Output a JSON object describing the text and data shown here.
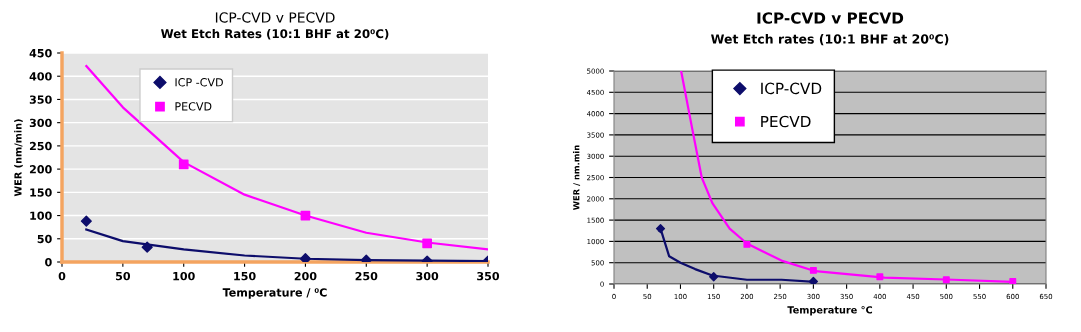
{
  "chart_data": [
    {
      "type": "scatter",
      "title": "ICP-CVD v PECVD",
      "subtitle": "Wet Etch Rates (10:1 BHF at 20⁰C)",
      "xlabel": "Temperature / ⁰C",
      "ylabel": "WER (nm/min)",
      "xlim": [
        0,
        350
      ],
      "xticks": [
        0,
        50,
        100,
        150,
        200,
        250,
        300,
        350
      ],
      "ylim": [
        0,
        450
      ],
      "yticks": [
        0,
        50,
        100,
        150,
        200,
        250,
        300,
        350,
        400,
        450
      ],
      "grid": "y",
      "legend": "top left",
      "series": [
        {
          "name": "ICP -CVD",
          "marker": "diamond",
          "color": "#0d0d6b",
          "x": [
            20,
            70,
            200,
            250,
            300,
            350
          ],
          "values": [
            88,
            32,
            7,
            4,
            2,
            2
          ]
        },
        {
          "name": "PECVD",
          "marker": "square",
          "color": "#ff00ff",
          "x": [
            100,
            200,
            300
          ],
          "values": [
            210,
            100,
            40
          ]
        },
        {
          "type": "line",
          "color": "#0d0d6b",
          "x": [
            20,
            50,
            100,
            150,
            200,
            250,
            300,
            350
          ],
          "values": [
            70,
            45,
            27,
            14,
            7,
            4,
            3,
            2
          ]
        },
        {
          "type": "line",
          "color": "#ff00ff",
          "x": [
            20,
            50,
            100,
            150,
            200,
            250,
            300,
            350
          ],
          "values": [
            422,
            333,
            215,
            145,
            100,
            63,
            42,
            27
          ]
        }
      ]
    },
    {
      "type": "scatter",
      "title": "ICP-CVD v PECVD",
      "subtitle": "Wet Etch rates (10:1 BHF at 20⁰C)",
      "xlabel": "Temperature °C",
      "ylabel": "WER / nm.min",
      "xlim": [
        0,
        650
      ],
      "xticks": [
        0,
        50,
        100,
        150,
        200,
        250,
        300,
        350,
        400,
        450,
        500,
        550,
        600,
        650
      ],
      "ylim": [
        0,
        5000
      ],
      "yticks": [
        0,
        500,
        1000,
        1500,
        2000,
        2500,
        3000,
        3500,
        4000,
        4500,
        5000
      ],
      "grid": "y",
      "legend": "top left",
      "series": [
        {
          "name": "ICP-CVD",
          "marker": "diamond",
          "color": "#0d0d6b",
          "x": [
            70,
            150,
            300
          ],
          "values": [
            1300,
            170,
            60
          ]
        },
        {
          "name": "PECVD",
          "marker": "square",
          "color": "#ff00ff",
          "x": [
            200,
            300,
            400,
            500,
            600
          ],
          "values": [
            930,
            320,
            170,
            100,
            60
          ]
        },
        {
          "type": "line",
          "color": "#0d0d6b",
          "x": [
            68,
            70,
            83,
            100,
            122,
            148,
            200,
            252,
            300
          ],
          "values": [
            1250,
            1300,
            650,
            500,
            350,
            200,
            100,
            100,
            50
          ]
        },
        {
          "type": "line",
          "color": "#ff00ff",
          "x": [
            101,
            117,
            132,
            148,
            174,
            200,
            252,
            303,
            407,
            511,
            598
          ],
          "values": [
            5000,
            3700,
            2500,
            1900,
            1300,
            950,
            550,
            300,
            150,
            100,
            50
          ]
        }
      ]
    }
  ]
}
